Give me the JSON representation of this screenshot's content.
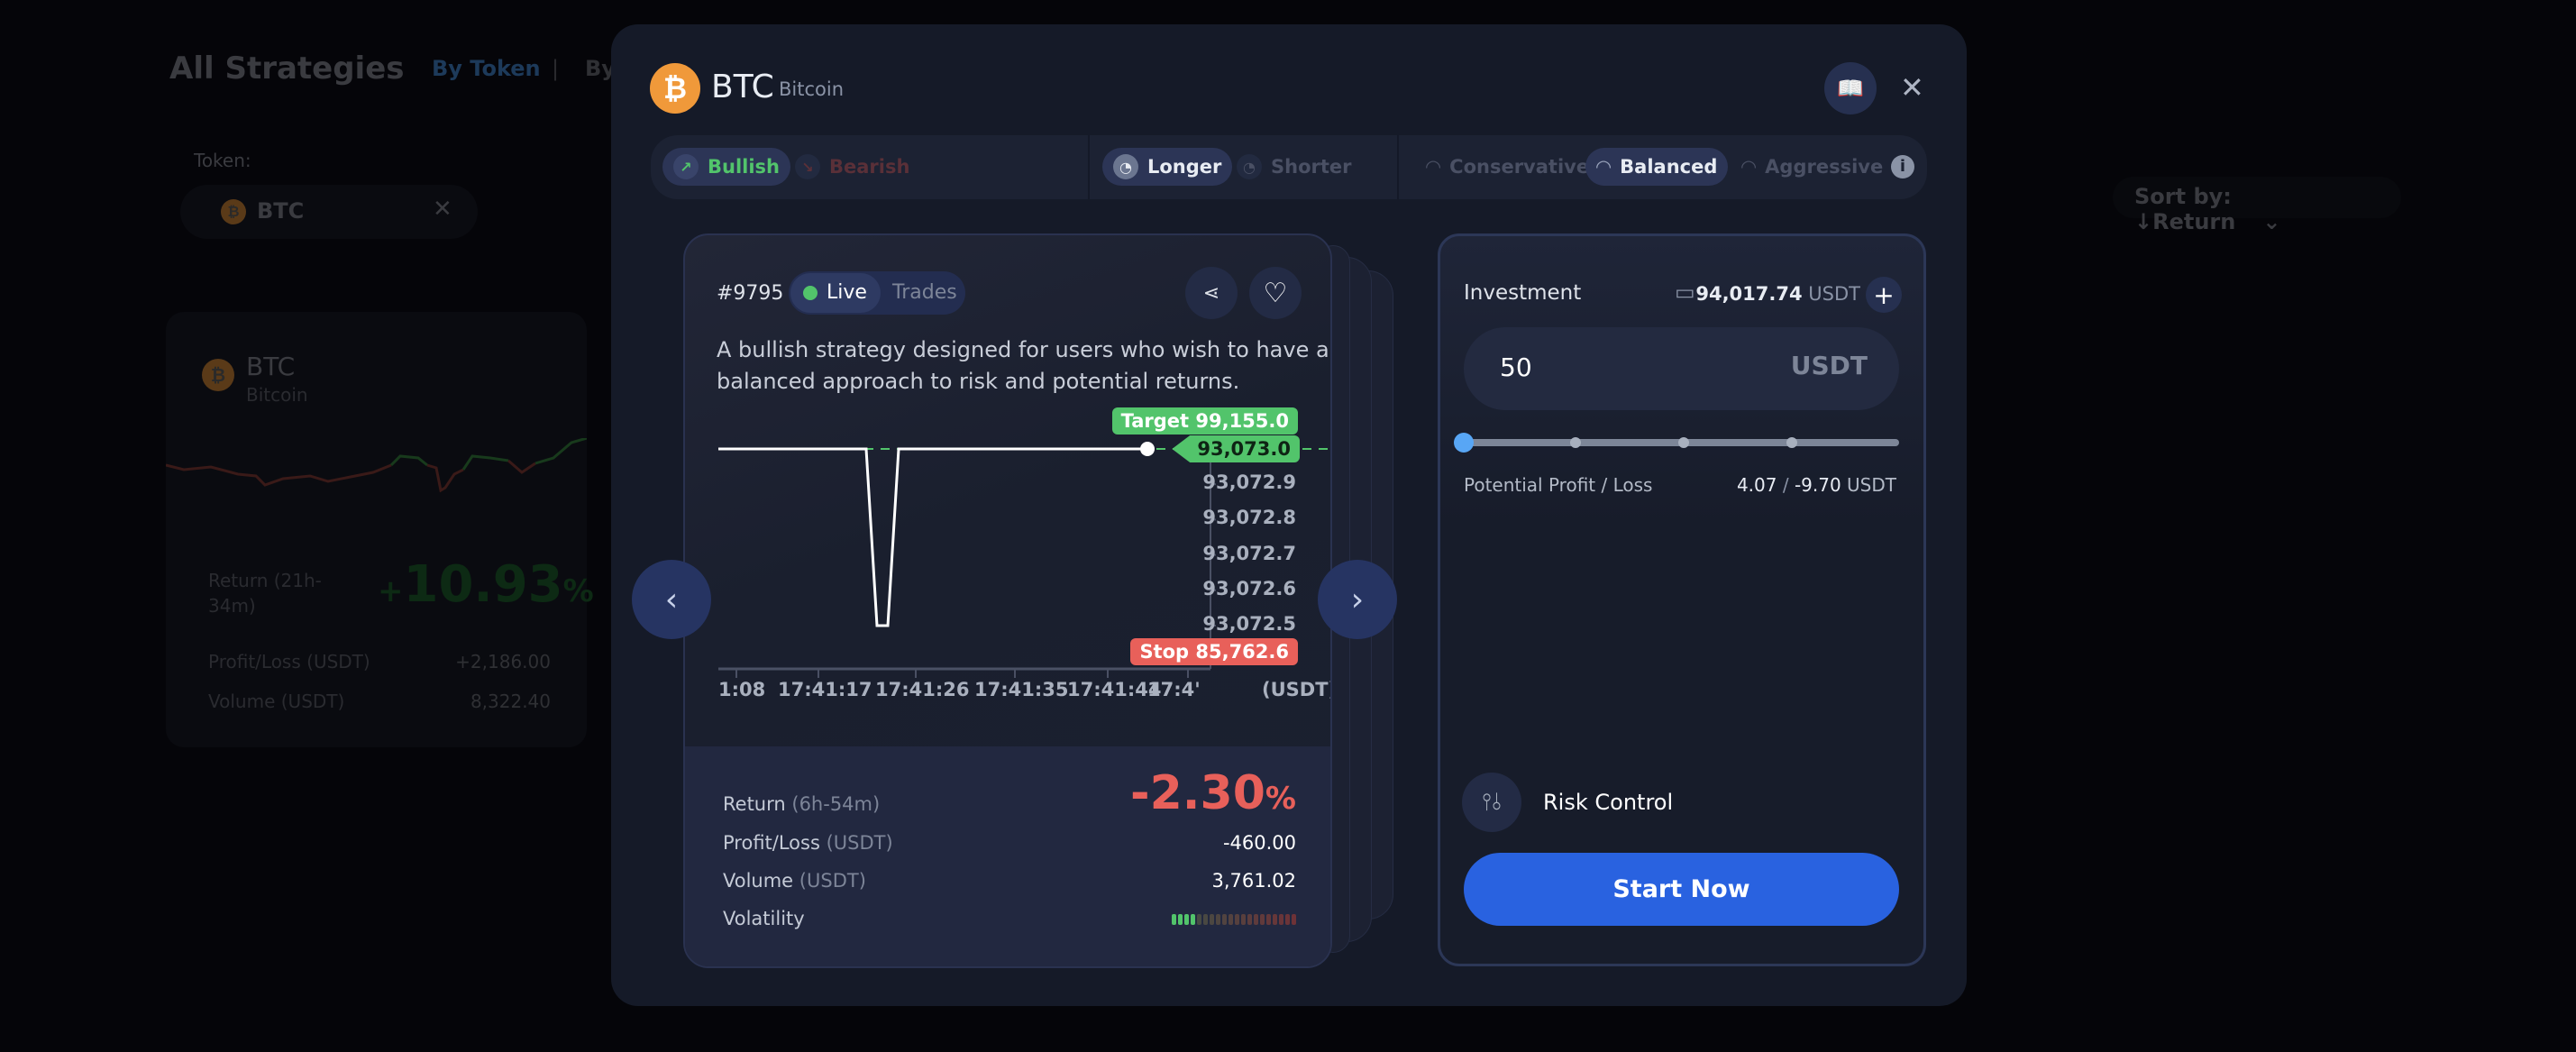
{
  "background": {
    "title": "All Strategies",
    "tabs": [
      "By Token",
      "|",
      "By"
    ],
    "token_label": "Token:",
    "token_value": "BTC",
    "sort": "Sort by: ↓Return",
    "card": {
      "symbol": "BTC",
      "name": "Bitcoin",
      "return_label": "Return (21h-",
      "return_label2": "34m)",
      "return_sign": "+",
      "return_value": "10.93",
      "return_unit": "%",
      "profit_label": "Profit/Loss",
      "profit_unit": "(USDT)",
      "profit_value": "+2,186.00",
      "volume_label": "Volume",
      "volume_unit": "(USDT)",
      "volume_value": "8,322.40"
    }
  },
  "modal": {
    "symbol": "BTC",
    "name": "Bitcoin",
    "filters": {
      "direction": [
        {
          "label": "Bullish",
          "active": true
        },
        {
          "label": "Bearish",
          "active": false
        }
      ],
      "duration": [
        {
          "label": "Longer",
          "active": true
        },
        {
          "label": "Shorter",
          "active": false
        }
      ],
      "risk": [
        {
          "label": "Conservative",
          "active": false
        },
        {
          "label": "Balanced",
          "active": true
        },
        {
          "label": "Aggressive",
          "active": false
        }
      ]
    },
    "strategy": {
      "id": "#9795",
      "tabs": [
        "Live",
        "Trades"
      ],
      "active_tab": "Live",
      "description_line1": "A bullish strategy designed for users who wish to have a",
      "description_line2": "balanced approach to risk and potential returns.",
      "target_tag": "Target 99,155.0",
      "current_tag": "93,073.0",
      "stop_tag": "Stop 85,762.6",
      "unit": "(USDT)",
      "y_ticks": [
        "93,072.9",
        "93,072.8",
        "93,072.7",
        "93,072.6",
        "93,072.5"
      ],
      "x_ticks": [
        "1:08",
        "17:41:17",
        "17:41:26",
        "17:41:35",
        "17:41:44",
        "17:4'"
      ],
      "return_label": "Return",
      "return_period": "(6h-54m)",
      "return_value": "-2.30",
      "return_unit": "%",
      "profit_label": "Profit/Loss",
      "profit_unit": "(USDT)",
      "profit_value": "-460.00",
      "volume_label": "Volume",
      "volume_unit": "(USDT)",
      "volume_value": "3,761.02",
      "volatility_label": "Volatility",
      "volatility_level": 4,
      "volatility_max": 20
    },
    "investment": {
      "label": "Investment",
      "balance": "94,017.74",
      "balance_unit": "USDT",
      "amount": "50",
      "amount_unit": "USDT",
      "slider_percent": 0,
      "potential_label": "Potential Profit / Loss",
      "potential_profit": "4.07",
      "potential_sep": "/",
      "potential_loss": "-9.70",
      "potential_unit": "USDT",
      "risk_control": "Risk Control",
      "start_button": "Start Now"
    },
    "colors": {
      "green": "#52c46b",
      "red": "#e8605a",
      "accent": "#2962e0",
      "btc": "#f0993a"
    }
  },
  "chart_data": {
    "type": "line",
    "x": [
      "17:41:06",
      "17:41:20",
      "17:41:21",
      "17:41:22",
      "17:41:23",
      "17:41:46"
    ],
    "values": [
      93073.0,
      93073.0,
      93072.5,
      93072.5,
      93073.0,
      93073.0
    ],
    "ylim": [
      93072.45,
      93073.0
    ],
    "xlabel": "",
    "ylabel": "(USDT)",
    "target": 99155.0,
    "stop": 85762.6
  }
}
